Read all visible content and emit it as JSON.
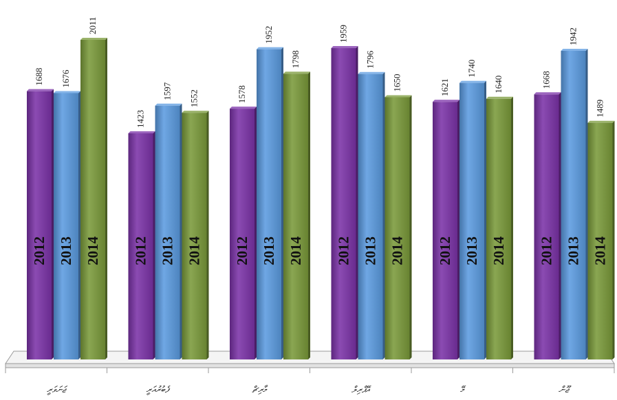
{
  "chart_data": {
    "type": "bar",
    "categories": [
      "ޖަނަވަރީ",
      "ފެބުރުއަރީ",
      "މާރިޗް",
      "އޭޕްރިލް",
      "މޭ",
      "ޖޫން"
    ],
    "series": [
      {
        "name": "2012",
        "color": "#7b32a8",
        "values": [
          1688,
          1423,
          1578,
          1959,
          1621,
          1668
        ]
      },
      {
        "name": "2013",
        "color": "#5b9be0",
        "values": [
          1676,
          1597,
          1952,
          1796,
          1740,
          1942
        ]
      },
      {
        "name": "2014",
        "color": "#7a9a3a",
        "values": [
          2011,
          1552,
          1798,
          1650,
          1640,
          1489
        ]
      }
    ],
    "ylim": [
      0,
      2011
    ],
    "grid": false,
    "legend": "none"
  }
}
